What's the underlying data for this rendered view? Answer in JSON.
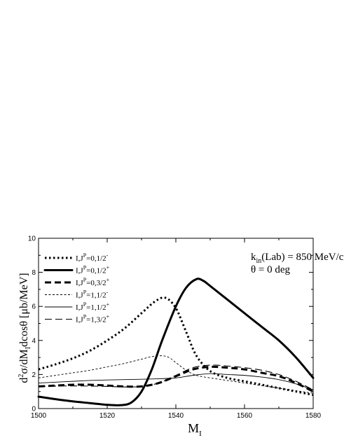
{
  "chart_data": {
    "type": "line",
    "xlabel": {
      "main": "M",
      "sub": "I"
    },
    "ylabel": {
      "pre": "d",
      "sup": "2",
      "mid": "σ/dM",
      "sub": "I",
      "post": "dcosθ [μb/MeV]"
    },
    "xlim": [
      1500,
      1580
    ],
    "ylim": [
      0,
      10
    ],
    "xticks": [
      "1500",
      "1520",
      "1540",
      "1560",
      "1580"
    ],
    "yticks": [
      "0",
      "2",
      "4",
      "6",
      "8",
      "10"
    ],
    "grid": false,
    "legend_position": "top-left",
    "annotations": [
      {
        "id": "kin",
        "pre": "k",
        "sub": "in",
        "post": "(Lab) = 850 MeV/c"
      },
      {
        "id": "theta",
        "text": "θ = 0 deg"
      }
    ],
    "series": [
      {
        "id": "s1",
        "legend": "I,J",
        "legend_sup": "P",
        "legend_tail": "=0,1/2",
        "legend_tail_sup": "-",
        "color": "#000000",
        "stroke": "thick-dotted",
        "x": [
          1500,
          1505,
          1510,
          1515,
          1520,
          1525,
          1530,
          1534,
          1537,
          1540,
          1543,
          1546,
          1550,
          1555,
          1560,
          1565,
          1570,
          1575,
          1580
        ],
        "y": [
          2.3,
          2.6,
          2.95,
          3.4,
          4.0,
          4.7,
          5.6,
          6.3,
          6.5,
          5.9,
          4.5,
          3.1,
          2.2,
          1.8,
          1.6,
          1.4,
          1.2,
          1.0,
          0.8
        ]
      },
      {
        "id": "s2",
        "legend": "I,J",
        "legend_sup": "P",
        "legend_tail": "=0,1/2",
        "legend_tail_sup": "+",
        "color": "#000000",
        "stroke": "thick-solid",
        "x": [
          1500,
          1505,
          1510,
          1515,
          1520,
          1524,
          1527,
          1530,
          1533,
          1536,
          1540,
          1543,
          1546,
          1548,
          1550,
          1555,
          1560,
          1565,
          1570,
          1575,
          1580
        ],
        "y": [
          0.7,
          0.55,
          0.42,
          0.32,
          0.22,
          0.2,
          0.35,
          1.0,
          2.3,
          4.0,
          6.0,
          7.1,
          7.6,
          7.5,
          7.2,
          6.4,
          5.6,
          4.8,
          4.0,
          3.0,
          1.8
        ]
      },
      {
        "id": "s3",
        "legend": "I,J",
        "legend_sup": "P",
        "legend_tail": "=0,3/2",
        "legend_tail_sup": "+",
        "color": "#000000",
        "stroke": "thick-dashed",
        "x": [
          1500,
          1505,
          1510,
          1515,
          1520,
          1525,
          1530,
          1535,
          1540,
          1545,
          1550,
          1555,
          1560,
          1565,
          1570,
          1575,
          1580
        ],
        "y": [
          1.3,
          1.35,
          1.4,
          1.4,
          1.35,
          1.3,
          1.3,
          1.5,
          1.9,
          2.3,
          2.45,
          2.4,
          2.3,
          2.1,
          1.9,
          1.5,
          1.0
        ]
      },
      {
        "id": "s4",
        "legend": "I,J",
        "legend_sup": "P",
        "legend_tail": "=1,1/2",
        "legend_tail_sup": "-",
        "color": "#000000",
        "stroke": "thin-dashed",
        "x": [
          1500,
          1505,
          1510,
          1515,
          1520,
          1525,
          1530,
          1533,
          1536,
          1538,
          1540,
          1543,
          1546,
          1550,
          1555,
          1560,
          1565,
          1570,
          1575,
          1580
        ],
        "y": [
          1.8,
          1.95,
          2.1,
          2.25,
          2.45,
          2.65,
          2.9,
          3.05,
          3.1,
          3.0,
          2.7,
          2.25,
          1.95,
          1.8,
          1.65,
          1.5,
          1.35,
          1.2,
          1.05,
          0.9
        ]
      },
      {
        "id": "s5",
        "legend": "I,J",
        "legend_sup": "P",
        "legend_tail": "=1,1/2",
        "legend_tail_sup": "+",
        "color": "#000000",
        "stroke": "thin-solid",
        "x": [
          1500,
          1505,
          1510,
          1515,
          1520,
          1525,
          1530,
          1535,
          1540,
          1545,
          1550,
          1555,
          1560,
          1565,
          1570,
          1575,
          1580
        ],
        "y": [
          1.5,
          1.55,
          1.6,
          1.65,
          1.68,
          1.7,
          1.72,
          1.75,
          1.8,
          1.95,
          2.05,
          2.0,
          1.95,
          1.85,
          1.7,
          1.45,
          1.1
        ]
      },
      {
        "id": "s6",
        "legend": "I,J",
        "legend_sup": "P",
        "legend_tail": "=1,3/2",
        "legend_tail_sup": "+",
        "color": "#000000",
        "stroke": "thin-longdash",
        "x": [
          1500,
          1505,
          1510,
          1515,
          1520,
          1525,
          1530,
          1535,
          1540,
          1545,
          1550,
          1555,
          1560,
          1565,
          1570,
          1575,
          1580
        ],
        "y": [
          1.3,
          1.32,
          1.33,
          1.32,
          1.3,
          1.27,
          1.3,
          1.5,
          1.95,
          2.4,
          2.55,
          2.5,
          2.4,
          2.25,
          2.0,
          1.6,
          1.1
        ]
      }
    ]
  }
}
